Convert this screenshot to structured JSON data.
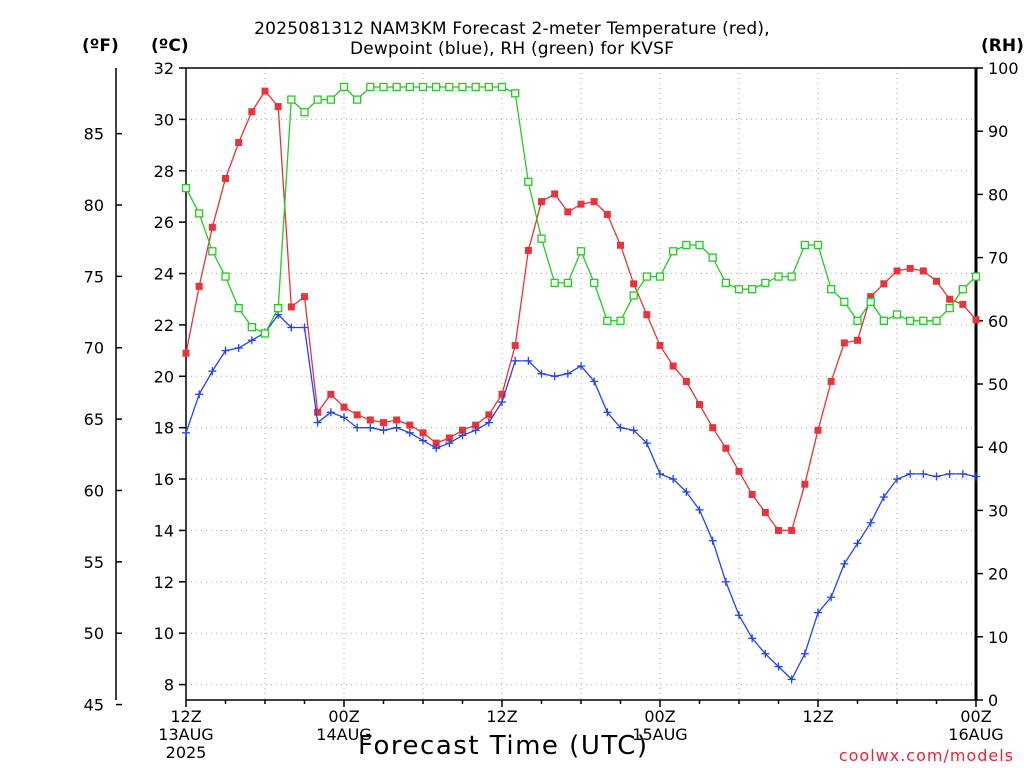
{
  "chart_data": {
    "type": "line",
    "title_lines": [
      "2025081312 NAM3KM Forecast 2-meter Temperature (red),",
      "Dewpoint (blue), RH (green) for KVSF"
    ],
    "unit_labels": {
      "fahrenheit": "(ºF)",
      "celsius": "(ºC)",
      "rh": "(RH)"
    },
    "xlabel": "Forecast Time (UTC)",
    "credit": "coolwx.com/models",
    "x_hours_range": [
      0,
      60
    ],
    "x_ticks": [
      {
        "hour": 0,
        "lines": [
          "12Z",
          "13AUG",
          "2025"
        ]
      },
      {
        "hour": 12,
        "lines": [
          "00Z",
          "14AUG"
        ]
      },
      {
        "hour": 24,
        "lines": [
          "12Z"
        ]
      },
      {
        "hour": 36,
        "lines": [
          "00Z",
          "15AUG"
        ]
      },
      {
        "hour": 48,
        "lines": [
          "12Z"
        ]
      },
      {
        "hour": 60,
        "lines": [
          "00Z",
          "16AUG"
        ]
      }
    ],
    "y_celsius": {
      "range": [
        7.4,
        32
      ],
      "ticks": [
        "8",
        "10",
        "12",
        "14",
        "16",
        "18",
        "20",
        "22",
        "24",
        "26",
        "28",
        "30",
        "32"
      ]
    },
    "y_fahrenheit": {
      "ticks": [
        "45",
        "50",
        "55",
        "60",
        "65",
        "70",
        "75",
        "80",
        "85"
      ]
    },
    "y_rh": {
      "range": [
        0,
        100
      ],
      "ticks": [
        "0",
        "10",
        "20",
        "30",
        "40",
        "50",
        "60",
        "70",
        "80",
        "90",
        "100"
      ]
    },
    "grid": true,
    "series": [
      {
        "name": "Temperature",
        "axis": "celsius",
        "color": "#e8333a",
        "marker": "filled-square",
        "x": [
          0,
          1,
          2,
          3,
          4,
          5,
          6,
          7,
          8,
          9,
          10,
          11,
          12,
          13,
          14,
          15,
          16,
          17,
          18,
          19,
          20,
          21,
          22,
          23,
          24,
          25,
          26,
          27,
          28,
          29,
          30,
          31,
          32,
          33,
          34,
          35,
          36,
          37,
          38,
          39,
          40,
          41,
          42,
          43,
          44,
          45,
          46,
          47,
          48,
          49,
          50,
          51,
          52,
          53,
          54,
          55,
          56,
          57,
          58,
          59,
          60
        ],
        "values": [
          20.9,
          23.5,
          25.8,
          27.7,
          29.1,
          30.3,
          31.1,
          30.5,
          22.7,
          23.1,
          18.6,
          19.3,
          18.8,
          18.5,
          18.3,
          18.2,
          18.3,
          18.1,
          17.8,
          17.4,
          17.6,
          17.9,
          18.1,
          18.5,
          19.3,
          21.2,
          24.9,
          26.8,
          27.1,
          26.4,
          26.7,
          26.8,
          26.3,
          25.1,
          23.6,
          22.4,
          21.2,
          20.4,
          19.8,
          18.9,
          18.0,
          17.2,
          16.3,
          15.4,
          14.7,
          14.0,
          14.0,
          15.8,
          17.9,
          19.8,
          21.3,
          21.4,
          23.1,
          23.6,
          24.1,
          24.2,
          24.1,
          23.7,
          23.0,
          22.8,
          22.2
        ]
      },
      {
        "name": "Dewpoint",
        "axis": "celsius",
        "color": "#2244ee",
        "marker": "plus",
        "x": [
          0,
          1,
          2,
          3,
          4,
          5,
          6,
          7,
          8,
          9,
          10,
          11,
          12,
          13,
          14,
          15,
          16,
          17,
          18,
          19,
          20,
          21,
          22,
          23,
          24,
          25,
          26,
          27,
          28,
          29,
          30,
          31,
          32,
          33,
          34,
          35,
          36,
          37,
          38,
          39,
          40,
          41,
          42,
          43,
          44,
          45,
          46,
          47,
          48,
          49,
          50,
          51,
          52,
          53,
          54,
          55,
          56,
          57,
          58,
          59,
          60
        ],
        "values": [
          17.8,
          19.3,
          20.2,
          21.0,
          21.1,
          21.4,
          21.7,
          22.4,
          21.9,
          21.9,
          18.2,
          18.6,
          18.4,
          18.0,
          18.0,
          17.9,
          18.0,
          17.8,
          17.5,
          17.2,
          17.4,
          17.7,
          17.9,
          18.2,
          19.0,
          20.6,
          20.6,
          20.1,
          20.0,
          20.1,
          20.4,
          19.8,
          18.6,
          18.0,
          17.9,
          17.4,
          16.2,
          16.0,
          15.5,
          14.8,
          13.6,
          12.0,
          10.7,
          9.8,
          9.2,
          8.7,
          8.2,
          9.2,
          10.8,
          11.4,
          12.7,
          13.5,
          14.3,
          15.3,
          16.0,
          16.2,
          16.2,
          16.1,
          16.2,
          16.2,
          16.1
        ]
      },
      {
        "name": "RH",
        "axis": "rh",
        "color": "#22cc22",
        "marker": "open-square",
        "x": [
          0,
          1,
          2,
          3,
          4,
          5,
          6,
          7,
          8,
          9,
          10,
          11,
          12,
          13,
          14,
          15,
          16,
          17,
          18,
          19,
          20,
          21,
          22,
          23,
          24,
          25,
          26,
          27,
          28,
          29,
          30,
          31,
          32,
          33,
          34,
          35,
          36,
          37,
          38,
          39,
          40,
          41,
          42,
          43,
          44,
          45,
          46,
          47,
          48,
          49,
          50,
          51,
          52,
          53,
          54,
          55,
          56,
          57,
          58,
          59,
          60
        ],
        "values": [
          81,
          77,
          71,
          67,
          62,
          59,
          58,
          62,
          95,
          93,
          95,
          95,
          97,
          95,
          97,
          97,
          97,
          97,
          97,
          97,
          97,
          97,
          97,
          97,
          97,
          96,
          82,
          73,
          66,
          66,
          71,
          66,
          60,
          60,
          64,
          67,
          67,
          71,
          72,
          72,
          70,
          66,
          65,
          65,
          66,
          67,
          67,
          72,
          72,
          65,
          63,
          60,
          63,
          60,
          61,
          60,
          60,
          60,
          62,
          65,
          67
        ]
      }
    ]
  }
}
